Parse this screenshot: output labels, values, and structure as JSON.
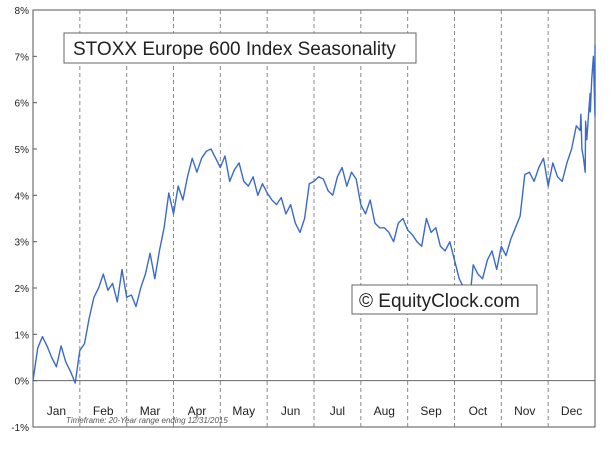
{
  "chart_data": {
    "type": "line",
    "title": "STOXX Europe 600 Index Seasonality",
    "watermark": "© EquityClock.com",
    "footnote": "Timeframe: 20-Year range ending 12/31/2015",
    "xlabel": "",
    "ylabel": "",
    "ylim": [
      -1,
      8
    ],
    "y_ticks": [
      "-1%",
      "0%",
      "1%",
      "2%",
      "3%",
      "4%",
      "5%",
      "6%",
      "7%",
      "8%"
    ],
    "x_ticks": [
      "Jan",
      "Feb",
      "Mar",
      "Apr",
      "May",
      "Jun",
      "Jul",
      "Aug",
      "Sep",
      "Oct",
      "Nov",
      "Dec"
    ],
    "grid": "vertical month lines, horizontal at 0%",
    "colors": {
      "line": "#3a6bc9",
      "grid": "#888888",
      "background": "#ffffff"
    },
    "series": [
      {
        "x": [
          0,
          0.1,
          0.2,
          0.3,
          0.4,
          0.5,
          0.6,
          0.7,
          0.8,
          0.9,
          1.0,
          1.1,
          1.2,
          1.3,
          1.4,
          1.5,
          1.6,
          1.7,
          1.8,
          1.9,
          2.0,
          2.1,
          2.2,
          2.3,
          2.4,
          2.5,
          2.6,
          2.7,
          2.8,
          2.9,
          3.0,
          3.1,
          3.2,
          3.3,
          3.4,
          3.5,
          3.6,
          3.7,
          3.8,
          3.9,
          4.0,
          4.1,
          4.2,
          4.3,
          4.4,
          4.5,
          4.6,
          4.7,
          4.8,
          4.9,
          5.0,
          5.1,
          5.2,
          5.3,
          5.4,
          5.5,
          5.6,
          5.7,
          5.8,
          5.9,
          6.0,
          6.1,
          6.2,
          6.3,
          6.4,
          6.5,
          6.6,
          6.7,
          6.8,
          6.9,
          7.0,
          7.1,
          7.2,
          7.3,
          7.4,
          7.5,
          7.6,
          7.7,
          7.8,
          7.9,
          8.0,
          8.1,
          8.2,
          8.3,
          8.4,
          8.5,
          8.6,
          8.7,
          8.8,
          8.9,
          9.0,
          9.1,
          9.2,
          9.3,
          9.4,
          9.5,
          9.6,
          9.7,
          9.8,
          9.9,
          10.0,
          10.1,
          10.2,
          10.3,
          10.4,
          10.5,
          10.6,
          10.7,
          10.8,
          10.9,
          11.0,
          11.1,
          11.2,
          11.3,
          11.4,
          11.5,
          11.6,
          11.7,
          11.8,
          11.9,
          12.0
        ],
        "values": [
          0.0,
          0.7,
          0.95,
          0.75,
          0.5,
          0.3,
          0.75,
          0.4,
          0.2,
          -0.05,
          0.65,
          0.8,
          1.35,
          1.8,
          2.0,
          2.3,
          1.95,
          2.1,
          1.7,
          2.4,
          1.8,
          1.85,
          1.6,
          2.0,
          2.3,
          2.75,
          2.2,
          2.8,
          3.3,
          4.05,
          3.6,
          4.2,
          3.9,
          4.4,
          4.8,
          4.5,
          4.8,
          4.95,
          5.0,
          4.8,
          4.6,
          4.85,
          4.3,
          4.55,
          4.7,
          4.3,
          4.2,
          4.4,
          4.0,
          4.25,
          4.05,
          3.9,
          3.8,
          3.95,
          3.6,
          3.8,
          3.4,
          3.2,
          3.5,
          4.25,
          4.3,
          4.4,
          4.35,
          4.1,
          4.0,
          4.4,
          4.6,
          4.2,
          4.5,
          4.35,
          3.8,
          3.6,
          3.9,
          3.4,
          3.3,
          3.3,
          3.2,
          3.0,
          3.4,
          3.5,
          3.25,
          3.15,
          3.0,
          2.9,
          3.5,
          3.2,
          3.3,
          2.9,
          2.8,
          3.0,
          2.6,
          2.2,
          2.0,
          1.5,
          2.5,
          2.3,
          2.2,
          2.6,
          2.8,
          2.4,
          2.9,
          2.7,
          3.05,
          3.3,
          3.55,
          4.45,
          4.5,
          4.3,
          4.6,
          4.8,
          4.2,
          4.7,
          4.4,
          4.3,
          4.7,
          5.0,
          5.5,
          5.75,
          5.6,
          5.8,
          5.7
        ]
      }
    ],
    "ending_values": [
      5.4,
      5.0,
      4.8,
      4.5,
      5.2,
      5.7,
      6.2,
      6.5,
      7.0,
      7.25
    ]
  }
}
